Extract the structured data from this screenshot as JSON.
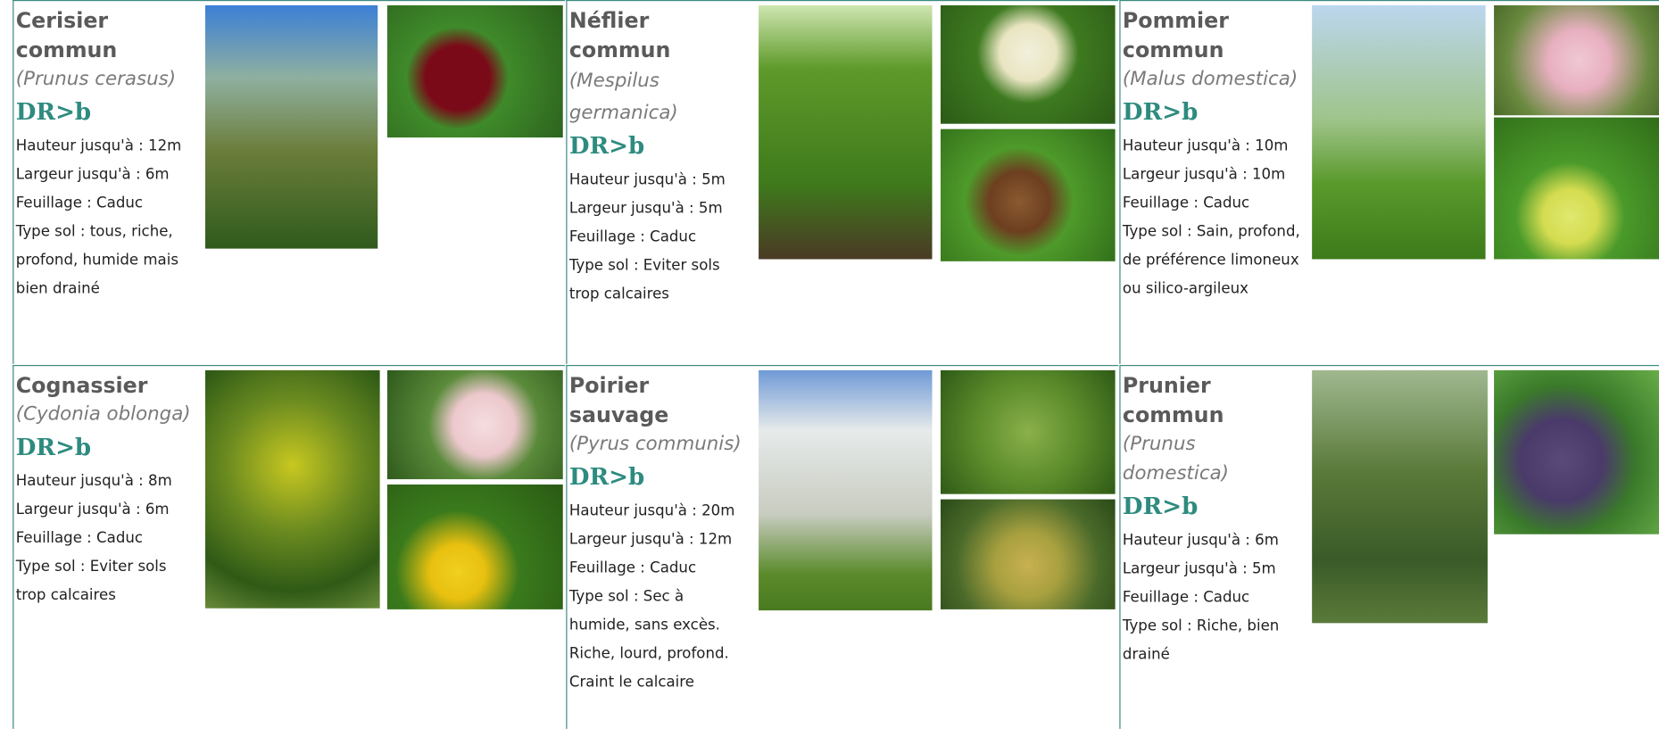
{
  "cells": [
    {
      "name": "Cerisier commun",
      "latin": "(Prunus cerasus)",
      "code": "DR>b",
      "details": [
        "Hauteur jusqu'à : 12m",
        "Largeur jusqu'à : 6m",
        "Feuillage : Caduc",
        "Type sol : tous, riche, profond, humide mais bien drainé"
      ]
    },
    {
      "name": "Néflier commun",
      "latin": "(Mespilus germanica)",
      "code": "DR>b",
      "details": [
        "Hauteur jusqu'à : 5m",
        "Largeur jusqu'à : 5m",
        "Feuillage : Caduc",
        "Type sol : Eviter sols trop calcaires"
      ]
    },
    {
      "name": "Pommier commun",
      "latin": "(Malus domestica)",
      "code": "DR>b",
      "details": [
        "Hauteur jusqu'à : 10m",
        "Largeur jusqu'à : 10m",
        "Feuillage : Caduc",
        "Type sol : Sain, profond, de préférence limoneux ou silico-argileux"
      ]
    },
    {
      "name": "Cognassier",
      "latin": "(Cydonia oblonga)",
      "code": "DR>b",
      "details": [
        "Hauteur jusqu'à : 8m",
        "Largeur jusqu'à : 6m",
        "Feuillage : Caduc",
        "Type sol : Eviter sols trop calcaires"
      ]
    },
    {
      "name": "Poirier sauvage",
      "latin": "(Pyrus communis)",
      "code": "DR>b",
      "details": [
        "Hauteur jusqu'à : 20m",
        "Largeur jusqu'à : 12m",
        "Feuillage : Caduc",
        "Type sol : Sec à humide, sans excès. Riche, lourd, profond. Craint le calcaire"
      ]
    },
    {
      "name": "Prunier commun",
      "latin": "(Prunus domestica)",
      "code": "DR>b",
      "details": [
        "Hauteur jusqu'à : 6m",
        "Largeur jusqu'à : 5m",
        "Feuillage : Caduc",
        "Type sol : Riche, bien drainé"
      ]
    }
  ]
}
